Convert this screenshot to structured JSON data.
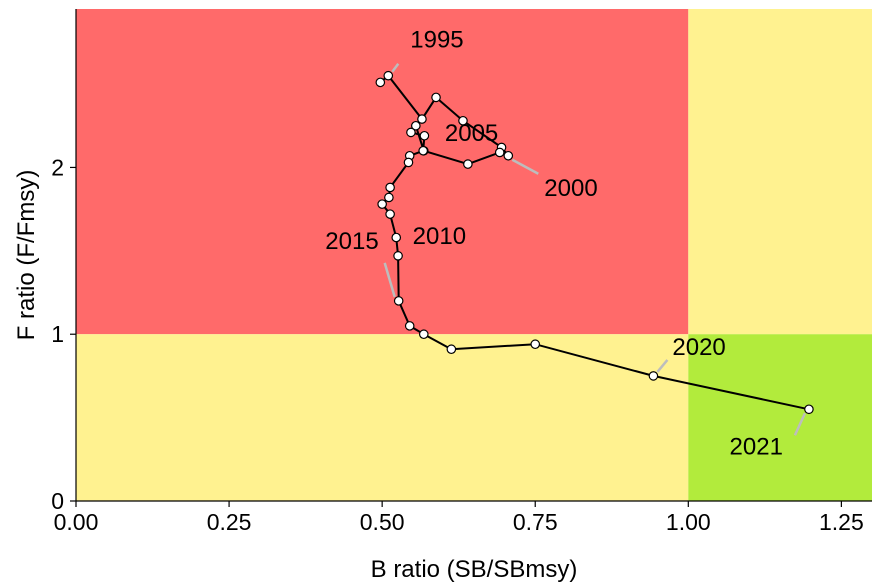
{
  "chart_data": {
    "type": "scatter",
    "title": "",
    "xlabel": "B ratio (SB/SBmsy)",
    "ylabel": "F ratio (F/Fmsy)",
    "xlim": [
      0,
      1.3
    ],
    "ylim": [
      0,
      2.95
    ],
    "x_ticks": [
      0,
      0.25,
      0.5,
      0.75,
      1,
      1.25
    ],
    "x_tick_labels": [
      "0.00",
      "0.25",
      "0.50",
      "0.75",
      "1.00",
      "1.25"
    ],
    "y_ticks": [
      0,
      1,
      2
    ],
    "y_tick_labels": [
      "0",
      "1",
      "2"
    ],
    "grid": false,
    "zones": [
      {
        "name": "overfished-overfishing",
        "x": [
          0,
          1
        ],
        "y": [
          1,
          2.95
        ],
        "color": "#ff6a6a"
      },
      {
        "name": "not-overfished-overfishing",
        "x": [
          1,
          1.3
        ],
        "y": [
          1,
          2.95
        ],
        "color": "#fff290"
      },
      {
        "name": "overfished-no-overfishing",
        "x": [
          0,
          1
        ],
        "y": [
          0,
          1
        ],
        "color": "#fff290"
      },
      {
        "name": "healthy",
        "x": [
          1,
          1.3
        ],
        "y": [
          0,
          1
        ],
        "color": "#b2eb3c"
      }
    ],
    "line_color": "#000000",
    "point_fill": "#ffffff",
    "series": [
      {
        "x": [
          0.497,
          0.51,
          0.565,
          0.588,
          0.632,
          0.695,
          0.706,
          0.692,
          0.64,
          0.568,
          0.555,
          0.547,
          0.569,
          0.567,
          0.545,
          0.543,
          0.513,
          0.511,
          0.5,
          0.513,
          0.523,
          0.526,
          0.527,
          0.545,
          0.568,
          0.613,
          0.75,
          0.943,
          1.197
        ],
        "y": [
          2.51,
          2.55,
          2.29,
          2.42,
          2.28,
          2.12,
          2.07,
          2.09,
          2.02,
          2.1,
          2.25,
          2.21,
          2.19,
          2.1,
          2.07,
          2.03,
          1.88,
          1.82,
          1.78,
          1.72,
          1.58,
          1.47,
          1.2,
          1.05,
          1.0,
          0.91,
          0.94,
          0.75,
          0.55
        ]
      }
    ],
    "year_labels": [
      {
        "text": "1995",
        "x": 0.51,
        "y": 2.55
      },
      {
        "text": "2000",
        "x": 0.706,
        "y": 2.07
      },
      {
        "text": "2005",
        "x": 0.64,
        "y": 2.02
      },
      {
        "text": "2010",
        "x": 0.527,
        "y": 1.78
      },
      {
        "text": "2015",
        "x": 0.527,
        "y": 1.2
      },
      {
        "text": "2020",
        "x": 0.943,
        "y": 0.75
      },
      {
        "text": "2021",
        "x": 1.197,
        "y": 0.55
      }
    ]
  }
}
